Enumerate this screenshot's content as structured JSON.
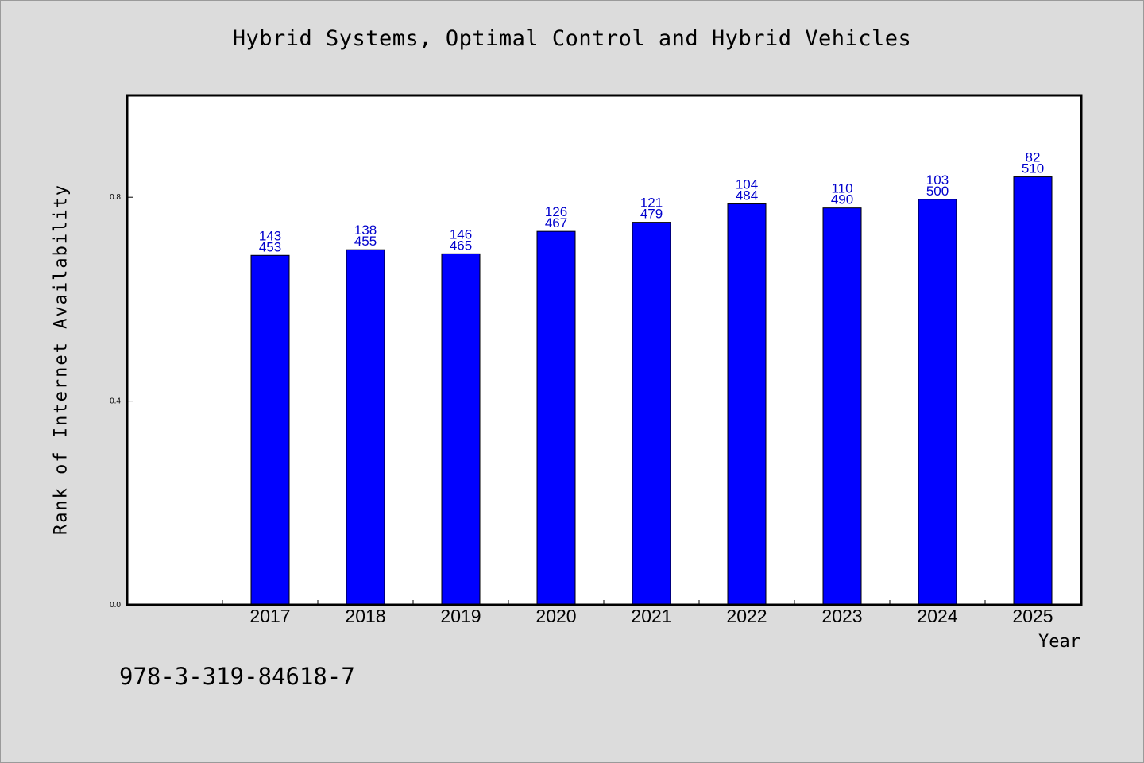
{
  "chart_data": {
    "type": "bar",
    "title": "Hybrid Systems, Optimal Control and Hybrid Vehicles",
    "xlabel": "Year",
    "ylabel": "Rank of Internet Availability",
    "categories": [
      "2017",
      "2018",
      "2019",
      "2020",
      "2021",
      "2022",
      "2023",
      "2024",
      "2025"
    ],
    "values": [
      0.686,
      0.697,
      0.689,
      0.733,
      0.751,
      0.787,
      0.779,
      0.796,
      0.84
    ],
    "bar_labels": [
      [
        "143",
        "453"
      ],
      [
        "138",
        "455"
      ],
      [
        "146",
        "465"
      ],
      [
        "126",
        "467"
      ],
      [
        "121",
        "479"
      ],
      [
        "104",
        "484"
      ],
      [
        "110",
        "490"
      ],
      [
        "103",
        "500"
      ],
      [
        "82",
        "510"
      ]
    ],
    "yticks": [
      "0.0",
      "0.4",
      "0.8"
    ],
    "ylim": [
      0,
      1.0
    ],
    "grid": false,
    "legend": "none",
    "bar_color": "#0000ff",
    "label_color": "#0000cc"
  },
  "footer": {
    "isbn": "978-3-319-84618-7"
  }
}
